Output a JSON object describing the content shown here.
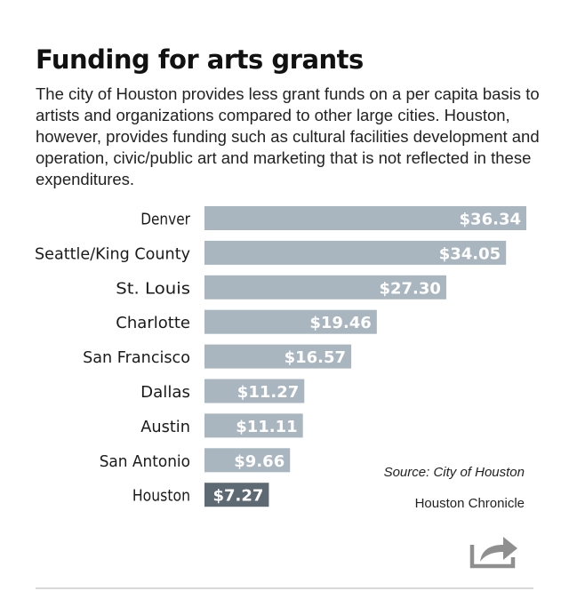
{
  "chart_data": {
    "type": "bar",
    "orientation": "horizontal",
    "title": "Funding for arts grants",
    "subtitle": "The city of Houston provides less grant funds on a per capita basis to artists and organizations compared to other large cities. Houston, however, provides funding such as cultural facilities development and operation, civic/public art and marketing that is not reflected in these expenditures.",
    "categories": [
      "Denver",
      "Seattle/King County",
      "St. Louis",
      "Charlotte",
      "San Francisco",
      "Dallas",
      "Austin",
      "San Antonio",
      "Houston"
    ],
    "values": [
      36.34,
      34.05,
      27.3,
      19.46,
      16.57,
      11.27,
      11.11,
      9.66,
      7.27
    ],
    "value_labels": [
      "$36.34",
      "$34.05",
      "$27.30",
      "$19.46",
      "$16.57",
      "$11.27",
      "$11.11",
      "$9.66",
      "$7.27"
    ],
    "highlight": "Houston",
    "xlim": [
      0,
      36.34
    ],
    "grid": false,
    "legend": "none",
    "colors": {
      "bar": "#a9b6c0",
      "highlight_bar": "#5e6a73",
      "value_label": "#ffffff",
      "category_label": "#1a1a1a"
    }
  },
  "footer": {
    "source": "Source: City of Houston",
    "credit": "Houston Chronicle"
  },
  "icons": {
    "share": "share-icon"
  }
}
